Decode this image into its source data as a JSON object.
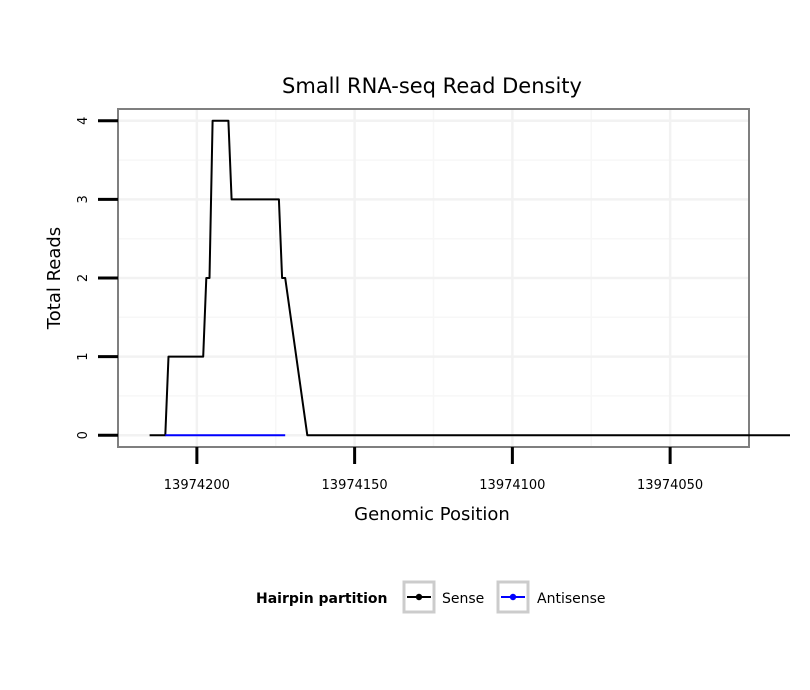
{
  "chart_data": {
    "type": "line",
    "title": "Small RNA-seq Read Density",
    "xlabel": "Genomic Position",
    "ylabel": "Total Reads",
    "x_reversed": true,
    "xlim": [
      13974225,
      13974025
    ],
    "ylim": [
      -0.15,
      4.15
    ],
    "x_ticks": [
      13974200,
      13974150,
      13974100,
      13974050
    ],
    "x_tick_labels": [
      "13974200",
      "13974150",
      "13974100",
      "13974050"
    ],
    "y_ticks": [
      0,
      1,
      2,
      3,
      4
    ],
    "y_tick_labels": [
      "0",
      "1",
      "2",
      "3",
      "4"
    ],
    "grid": true,
    "legend_title": "Hairpin partition",
    "legend_position": "bottom",
    "series": [
      {
        "name": "Sense",
        "color": "#000000",
        "x": [
          13974215,
          13974210,
          13974209,
          13974198,
          13974197,
          13974196,
          13974195,
          13974190,
          13974189,
          13974187,
          13974185,
          13974180,
          13974174,
          13974173,
          13974172,
          13974165,
          13974160,
          13974150,
          13974100,
          13974050,
          13974012
        ],
        "y": [
          0,
          0,
          1,
          1,
          2,
          2,
          4,
          4,
          3,
          3,
          3,
          3,
          3,
          2,
          2,
          0,
          0,
          0,
          0,
          0,
          0
        ]
      },
      {
        "name": "Antisense",
        "color": "#0000ff",
        "x": [
          13974210,
          13974200,
          13974190,
          13974180,
          13974172
        ],
        "y": [
          0,
          0,
          0,
          0,
          0
        ]
      }
    ]
  }
}
